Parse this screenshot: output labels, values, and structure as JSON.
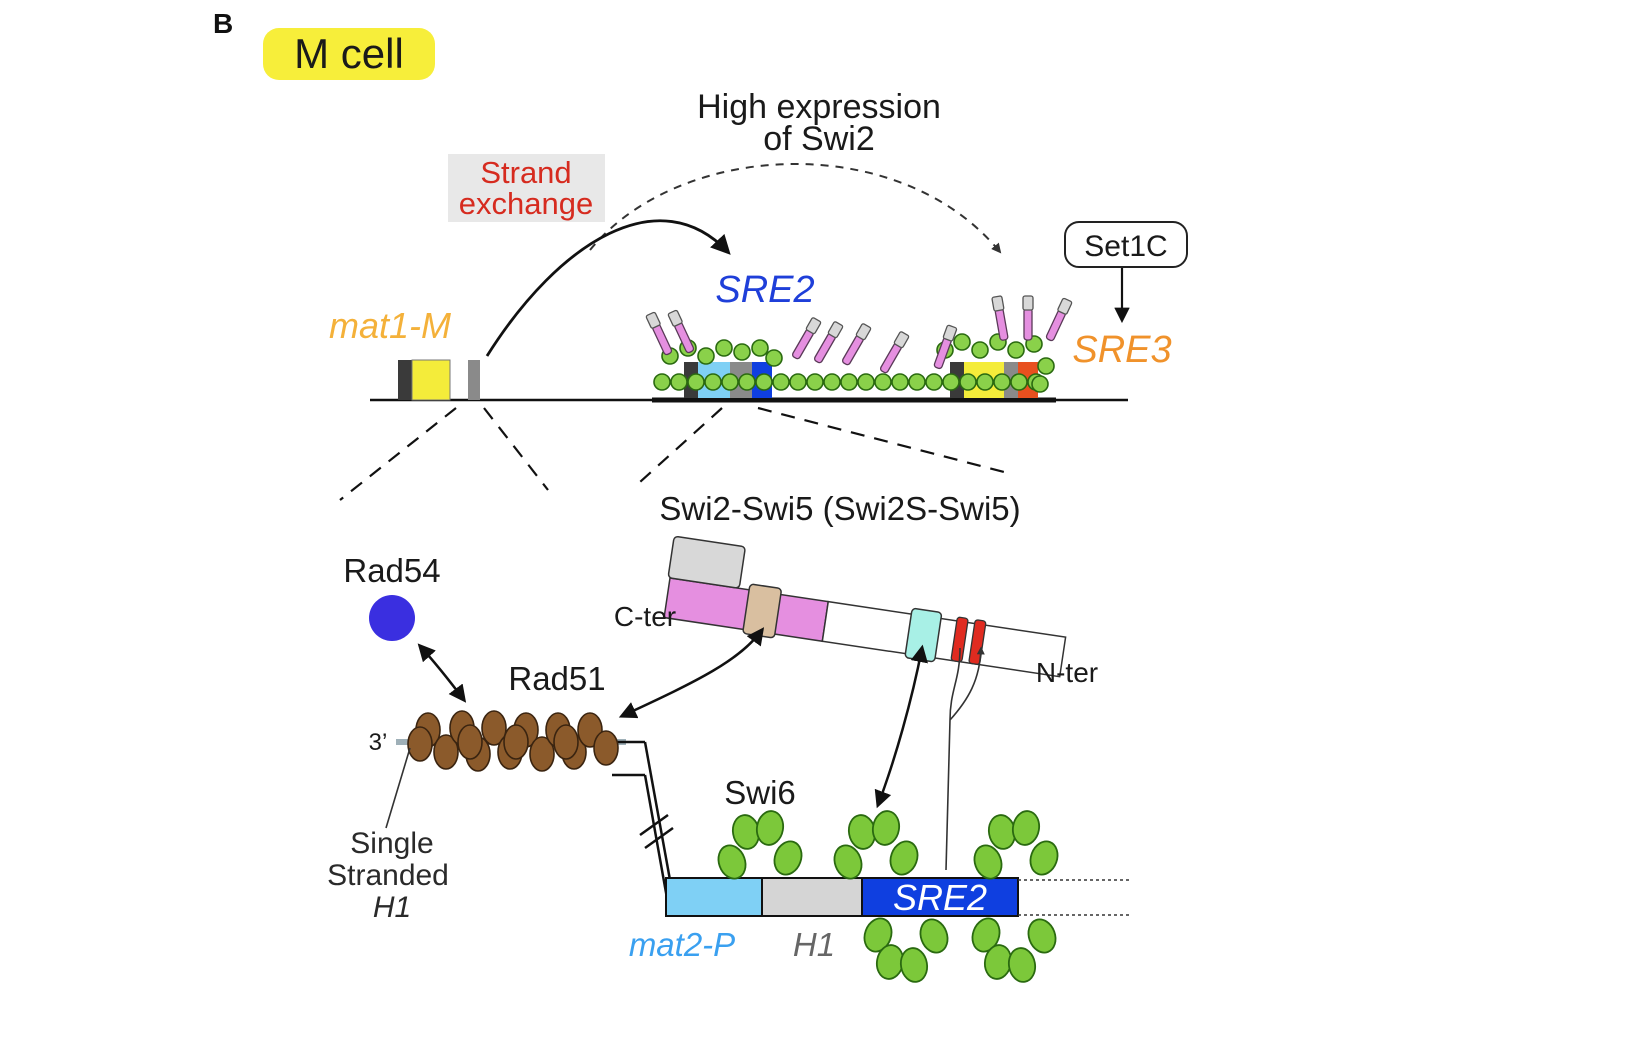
{
  "panel_letter": "B",
  "cell_label": "M cell",
  "annotations": {
    "high_expression_line1": "High expression",
    "high_expression_line2": "of Swi2",
    "strand_exchange_line1": "Strand",
    "strand_exchange_line2": "exchange",
    "set1c": "Set1C"
  },
  "loci": {
    "mat1_m": "mat1-M",
    "sre2_top": "SRE2",
    "sre3": "SRE3",
    "mat2_p": "mat2-P",
    "h1": "H1",
    "sre2_bottom": "SRE2"
  },
  "proteins": {
    "rad54": "Rad54",
    "rad51": "Rad51",
    "swi6": "Swi6",
    "swi2_swi5": "Swi2-Swi5 (Swi2S-Swi5)",
    "c_ter": "C-ter",
    "n_ter": "N-ter"
  },
  "ssdna": {
    "three_prime": "3’",
    "line1": "Single",
    "line2": "Stranded",
    "line3": "H1"
  },
  "colors": {
    "label_yellow": "#f7ee3a",
    "red_text": "#d62b1f",
    "blue_text": "#1f3fd9",
    "orange_text": "#f0922b",
    "mat_orange": "#f4b13a",
    "mat2p_blue": "#3aa0f0",
    "rad54_blue": "#3a2fe0",
    "rad51_brown": "#8b5a2b",
    "swi6_green": "#7cc83a",
    "swi2_pink": "#e58fe0",
    "h1_gray": "#d5d5d5",
    "sre2_blue": "#0f3fe0",
    "light_blue": "#7fd0f5",
    "cyan_box": "#a8f0e6",
    "red_box": "#e02b20",
    "tan_box": "#d9bfa0"
  }
}
